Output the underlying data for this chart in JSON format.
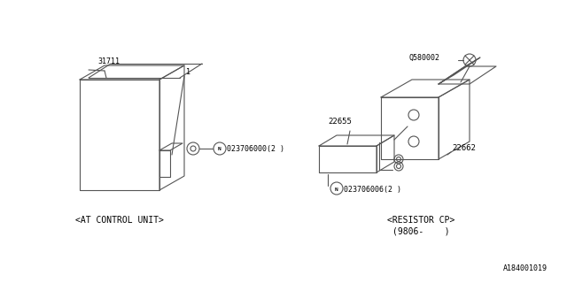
{
  "background_color": "#ffffff",
  "line_color": "#555555",
  "text_color": "#000000",
  "diagram_id": "A184001019",
  "font_size_label": 6.0,
  "font_size_caption": 7.0,
  "left_part": {
    "label": "31711",
    "caption": "<AT CONTROL UNIT>",
    "connector_label": "023706000(2 )",
    "sub_label": "1"
  },
  "right_part": {
    "label_q": "Q580002",
    "label_22655": "22655",
    "label_22662": "22662",
    "connector_label": "023706006(2 )",
    "caption": "<RESISTOR CP>",
    "caption2": "(9806-    )"
  }
}
